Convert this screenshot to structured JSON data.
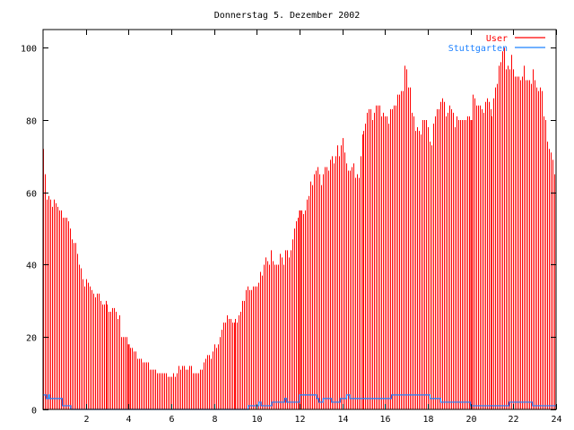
{
  "chart_data": {
    "type": "bar",
    "title": "Donnerstag 5. Dezember 2002",
    "xlabel": "",
    "ylabel": "",
    "xlim": [
      0,
      24
    ],
    "ylim": [
      0,
      105
    ],
    "x_ticks": [
      2,
      4,
      6,
      8,
      10,
      12,
      14,
      16,
      18,
      20,
      22,
      24
    ],
    "y_ticks": [
      0,
      20,
      40,
      60,
      80,
      100
    ],
    "legend_position": "top-right",
    "x_step_hours": 0.0833333,
    "series": [
      {
        "name": "User",
        "color": "#ff0000",
        "style": "impulses",
        "values": [
          72,
          65,
          58,
          59,
          58,
          56,
          58,
          57,
          56,
          55,
          55,
          53,
          53,
          53,
          52,
          50,
          47,
          46,
          46,
          43,
          40,
          39,
          36,
          34,
          36,
          35,
          34,
          33,
          32,
          31,
          32,
          32,
          30,
          29,
          29,
          30,
          29,
          27,
          27,
          28,
          28,
          27,
          25,
          26,
          20,
          20,
          20,
          20,
          18,
          17,
          17,
          16,
          16,
          14,
          14,
          14,
          13,
          13,
          13,
          13,
          11,
          11,
          11,
          11,
          10,
          10,
          10,
          10,
          10,
          10,
          9,
          9,
          9,
          10,
          9,
          10,
          12,
          11,
          12,
          12,
          11,
          11,
          12,
          12,
          10,
          10,
          10,
          10,
          11,
          11,
          13,
          14,
          15,
          15,
          14,
          16,
          18,
          17,
          18,
          20,
          22,
          24,
          24,
          26,
          25,
          25,
          24,
          24,
          25,
          24,
          26,
          27,
          30,
          30,
          33,
          34,
          33,
          33,
          34,
          34,
          34,
          35,
          38,
          37,
          40,
          42,
          41,
          40,
          44,
          41,
          40,
          40,
          40,
          43,
          42,
          40,
          44,
          44,
          42,
          44,
          47,
          50,
          52,
          53,
          55,
          55,
          54,
          55,
          58,
          59,
          63,
          62,
          65,
          66,
          67,
          65,
          62,
          65,
          67,
          67,
          66,
          69,
          70,
          68,
          70,
          73,
          70,
          73,
          75,
          71,
          68,
          66,
          66,
          67,
          68,
          64,
          65,
          64,
          70,
          76,
          77,
          79,
          82,
          83,
          83,
          80,
          82,
          84,
          84,
          84,
          81,
          82,
          81,
          81,
          79,
          83,
          83,
          84,
          84,
          87,
          87,
          88,
          88,
          95,
          94,
          89,
          89,
          82,
          81,
          77,
          78,
          77,
          76,
          80,
          80,
          80,
          78,
          74,
          73,
          79,
          81,
          83,
          83,
          85,
          86,
          85,
          81,
          82,
          84,
          83,
          82,
          78,
          81,
          80,
          80,
          80,
          80,
          80,
          81,
          81,
          80,
          87,
          86,
          84,
          84,
          84,
          83,
          82,
          85,
          86,
          85,
          83,
          81,
          86,
          89,
          90,
          95,
          96,
          99,
          100,
          94,
          95,
          94,
          98,
          94,
          92,
          92,
          92,
          91,
          92,
          95,
          91,
          91,
          91,
          90,
          94,
          91,
          89,
          88,
          89,
          88,
          81,
          80,
          74,
          72,
          71,
          69,
          65
        ]
      },
      {
        "name": "Stuttgarten",
        "color": "#1e82ff",
        "style": "steps",
        "steps": [
          [
            0,
            4
          ],
          [
            0.15,
            3
          ],
          [
            0.25,
            4
          ],
          [
            0.3,
            3
          ],
          [
            0.9,
            1
          ],
          [
            1.3,
            0
          ],
          [
            9.6,
            1
          ],
          [
            10.1,
            2
          ],
          [
            10.2,
            1
          ],
          [
            10.7,
            2
          ],
          [
            11.3,
            3
          ],
          [
            11.4,
            2
          ],
          [
            12.0,
            4
          ],
          [
            12.8,
            3
          ],
          [
            12.9,
            2
          ],
          [
            13.1,
            3
          ],
          [
            13.5,
            2
          ],
          [
            13.9,
            3
          ],
          [
            14.2,
            4
          ],
          [
            14.35,
            3
          ],
          [
            16.3,
            4
          ],
          [
            18.1,
            3
          ],
          [
            18.6,
            2
          ],
          [
            20.0,
            1
          ],
          [
            21.8,
            2
          ],
          [
            22.9,
            1
          ],
          [
            24,
            1
          ]
        ]
      }
    ]
  }
}
